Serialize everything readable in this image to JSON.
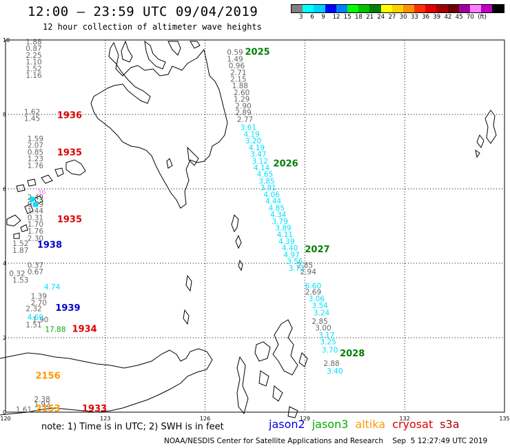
{
  "header": {
    "title": "12:00 – 23:59 UTC 09/04/2019",
    "subtitle": "12 hour collection of altimeter wave heights"
  },
  "colorbar": {
    "colors": [
      "#808080",
      "#00ffff",
      "#00d0ff",
      "#0000ff",
      "#0080ff",
      "#00ff00",
      "#00c000",
      "#008000",
      "#ffff00",
      "#ffd000",
      "#ff9000",
      "#ff3000",
      "#e00000",
      "#a00000",
      "#700000",
      "#a000a0",
      "#ff80ff",
      "#c000c0",
      "#000000"
    ],
    "labels": [
      "3",
      "6",
      "9",
      "12",
      "15",
      "18",
      "21",
      "24",
      "27",
      "30",
      "33",
      "36",
      "39",
      "42",
      "45",
      "70",
      "(ft)"
    ]
  },
  "axes": {
    "x_ticks": [
      "120",
      "123",
      "126",
      "129",
      "132",
      "135"
    ],
    "y_ticks": [
      "0",
      "2",
      "4",
      "6",
      "8",
      "10"
    ]
  },
  "tracks": [
    {
      "sat": "s3a",
      "color": "#000000",
      "points": [
        [
          120.85,
          9.88,
          "1.88"
        ],
        [
          120.85,
          9.7,
          "0.87"
        ],
        [
          120.85,
          9.52,
          "2.25"
        ],
        [
          120.85,
          9.34,
          "1.10"
        ],
        [
          120.85,
          9.16,
          "1.52"
        ],
        [
          120.85,
          8.98,
          "1.16"
        ]
      ]
    },
    {
      "sat": "s3a",
      "color": "#000000",
      "points": [
        [
          120.8,
          8.0,
          "1.62"
        ],
        [
          120.8,
          7.82,
          "1.45"
        ],
        [
          120.9,
          7.28,
          "1.59"
        ],
        [
          120.9,
          7.1,
          "2.07"
        ],
        [
          120.9,
          6.92,
          "0.85"
        ],
        [
          120.9,
          6.74,
          "1.23"
        ],
        [
          120.9,
          6.56,
          "1.76"
        ]
      ]
    },
    {
      "sat": "s3a",
      "color": "#000000",
      "points": [
        [
          120.9,
          5.7,
          "2.49"
        ],
        [
          120.9,
          5.52,
          "0.89"
        ],
        [
          120.9,
          5.34,
          "1.44"
        ],
        [
          120.9,
          5.16,
          "0.31"
        ],
        [
          120.9,
          4.98,
          "1.70"
        ],
        [
          120.9,
          4.8,
          "1.76"
        ],
        [
          120.9,
          4.6,
          "2.30"
        ],
        [
          120.45,
          4.46,
          "1.52"
        ],
        [
          120.45,
          4.28,
          "1.87"
        ]
      ]
    },
    {
      "sat": "s3a",
      "color": "#000000",
      "points": [
        [
          120.9,
          3.88,
          "0.37"
        ],
        [
          120.9,
          3.7,
          "0.67"
        ],
        [
          120.35,
          3.66,
          "0.32"
        ],
        [
          120.45,
          3.48,
          "1.53"
        ],
        [
          121.0,
          3.05,
          "1.39"
        ],
        [
          121.0,
          2.87,
          "2.70"
        ],
        [
          120.85,
          2.71,
          "2.32"
        ],
        [
          121.05,
          2.42,
          "1.90"
        ],
        [
          120.85,
          2.28,
          "1.51"
        ],
        [
          121.1,
          0.28,
          "2.38"
        ],
        [
          121.1,
          0.14,
          "1.92"
        ],
        [
          120.55,
          0.0,
          "1.61"
        ]
      ]
    },
    {
      "sat": "s3a",
      "color": "#000000",
      "points": [
        [
          126.9,
          9.6,
          "0.59"
        ],
        [
          126.9,
          9.42,
          "1.49"
        ],
        [
          126.95,
          9.24,
          "0.96"
        ],
        [
          127.0,
          9.06,
          "2.71"
        ],
        [
          127.0,
          8.88,
          "2.15"
        ],
        [
          127.05,
          8.7,
          "1.88"
        ],
        [
          127.1,
          8.52,
          "2.60"
        ],
        [
          127.1,
          8.34,
          "1.29"
        ],
        [
          127.15,
          8.16,
          "2.90"
        ],
        [
          127.15,
          7.98,
          "2.89"
        ],
        [
          127.2,
          7.8,
          "2.77"
        ]
      ]
    },
    {
      "sat": "s3a",
      "color": "#000000",
      "points": [
        [
          129.0,
          3.88,
          "2.85"
        ],
        [
          129.1,
          3.7,
          "2.94"
        ],
        [
          129.25,
          3.16,
          "2.69"
        ],
        [
          129.45,
          2.37,
          "2.85"
        ],
        [
          129.55,
          2.19,
          "3.00"
        ],
        [
          129.8,
          1.24,
          "2.88"
        ]
      ]
    },
    {
      "sat": "jason2",
      "color": "#00e0ff",
      "points": [
        [
          127.3,
          7.58,
          "3.61"
        ],
        [
          127.4,
          7.4,
          "4.19"
        ],
        [
          127.45,
          7.22,
          "3.20"
        ],
        [
          127.55,
          7.04,
          "4.19"
        ],
        [
          127.6,
          6.86,
          "3.47"
        ],
        [
          127.65,
          6.68,
          "3.12"
        ],
        [
          127.7,
          6.5,
          "4.14"
        ],
        [
          127.8,
          6.32,
          "4.65"
        ],
        [
          127.85,
          6.14,
          "3.85"
        ],
        [
          127.9,
          5.96,
          "3.81"
        ],
        [
          128.0,
          5.78,
          "4.06"
        ],
        [
          128.05,
          5.6,
          "4.44"
        ],
        [
          128.15,
          5.42,
          "4.85"
        ],
        [
          128.2,
          5.24,
          "4.34"
        ],
        [
          128.25,
          5.06,
          "3.79"
        ],
        [
          128.35,
          4.88,
          "3.89"
        ],
        [
          128.4,
          4.7,
          "4.11"
        ],
        [
          128.45,
          4.52,
          "4.39"
        ],
        [
          128.55,
          4.34,
          "4.40"
        ],
        [
          128.6,
          4.16,
          "4.97"
        ],
        [
          128.7,
          3.98,
          "3.56"
        ],
        [
          128.75,
          3.8,
          "3.72"
        ],
        [
          129.25,
          3.32,
          "6.60"
        ],
        [
          129.35,
          2.98,
          "3.06"
        ],
        [
          129.45,
          2.8,
          "3.54"
        ],
        [
          129.5,
          2.6,
          "3.24"
        ],
        [
          129.65,
          2.0,
          "3.17"
        ],
        [
          129.7,
          1.82,
          "3.25"
        ],
        [
          129.75,
          1.6,
          "3.70"
        ],
        [
          129.9,
          1.04,
          "3.40"
        ]
      ]
    },
    {
      "sat": "jason2",
      "color": "#00e0ff",
      "points": [
        [
          121.4,
          3.3,
          "4.74"
        ],
        [
          120.9,
          2.48,
          "4.69"
        ]
      ]
    },
    {
      "sat": "jason3",
      "color": "#00aa00",
      "points": [
        [
          121.5,
          2.16,
          "17.88"
        ]
      ]
    }
  ],
  "cyan_dots": [
    [
      120.8,
      5.72
    ],
    [
      120.9,
      5.58
    ]
  ],
  "pink_label": {
    "x": 120.95,
    "y": 5.85,
    "text": "36",
    "color": "#ff80ff"
  },
  "time_labels": [
    {
      "x": 121.55,
      "y": 7.9,
      "text": "1936",
      "color": "#dd0000"
    },
    {
      "x": 121.55,
      "y": 6.9,
      "text": "1935",
      "color": "#dd0000"
    },
    {
      "x": 121.55,
      "y": 5.1,
      "text": "1935",
      "color": "#dd0000"
    },
    {
      "x": 120.95,
      "y": 4.42,
      "text": "1938",
      "color": "#0000cc"
    },
    {
      "x": 121.5,
      "y": 2.72,
      "text": "1939",
      "color": "#0000cc"
    },
    {
      "x": 122.0,
      "y": 2.16,
      "text": "1934",
      "color": "#dd0000"
    },
    {
      "x": 120.9,
      "y": 0.9,
      "text": "2156",
      "color": "#ff9900"
    },
    {
      "x": 120.9,
      "y": 0.02,
      "text": "2153",
      "color": "#ff9900"
    },
    {
      "x": 122.3,
      "y": 0.02,
      "text": "1933",
      "color": "#dd0000"
    },
    {
      "x": 127.2,
      "y": 9.6,
      "text": "2025",
      "color": "#008000"
    },
    {
      "x": 128.05,
      "y": 6.6,
      "text": "2026",
      "color": "#008000"
    },
    {
      "x": 129.0,
      "y": 4.3,
      "text": "2027",
      "color": "#008000"
    },
    {
      "x": 130.05,
      "y": 1.5,
      "text": "2028",
      "color": "#008000"
    }
  ],
  "footer": {
    "note": "note: 1) Time is in UTC; 2) SWH is in feet",
    "legend": [
      {
        "label": "jason2",
        "color": "#0000dd"
      },
      {
        "label": "jason3",
        "color": "#00aa00"
      },
      {
        "label": "altika",
        "color": "#ff9900"
      },
      {
        "label": "cryosat",
        "color": "#dd0000"
      },
      {
        "label": "s3a",
        "color": "#aa0000"
      }
    ],
    "credit": "NOAA/NESDIS Center for Satellite Applications and Research    Sep  5 12:27:49 UTC 2019"
  }
}
